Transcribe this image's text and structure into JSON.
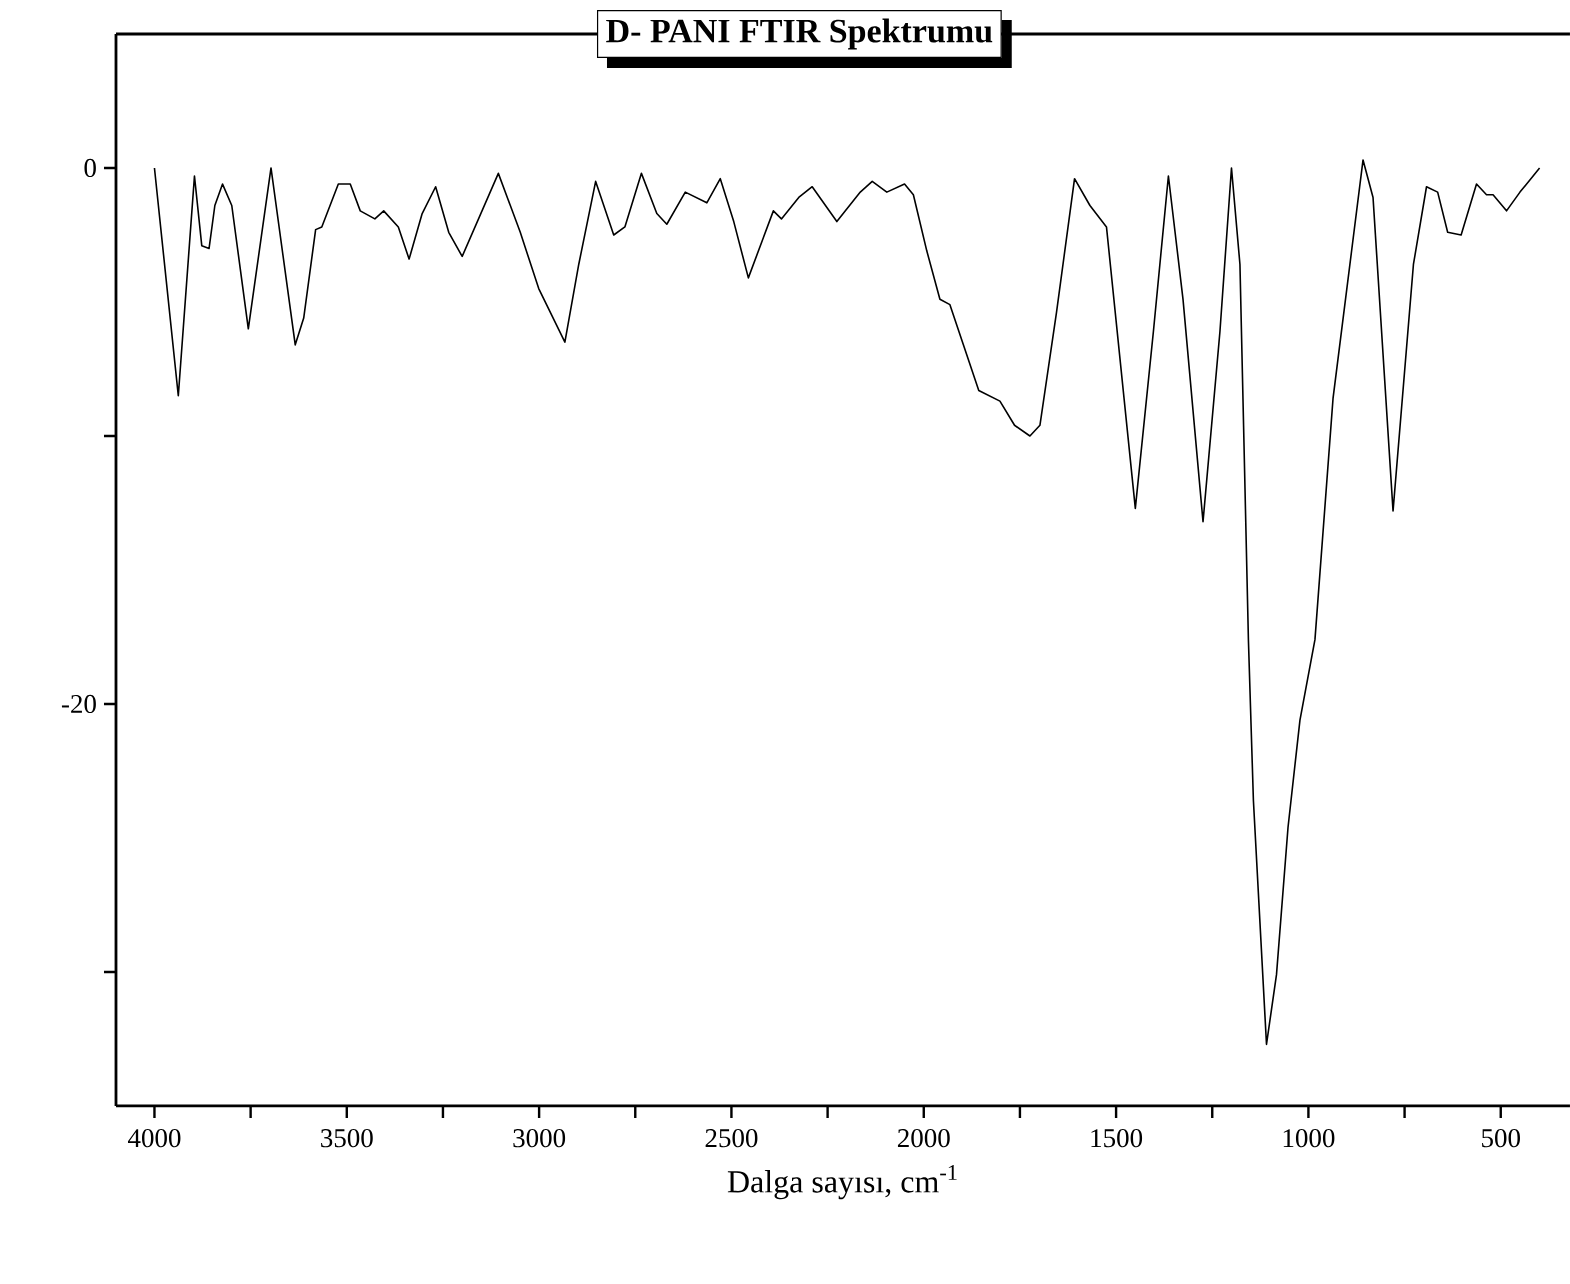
{
  "chart_data": {
    "type": "line",
    "title": "**D- PANI FTIR Spektrumu**",
    "xlabel": "Dalga sayısı, cm$^{-1}$",
    "x": [
      4000,
      3938,
      3896,
      3877,
      3858,
      3843,
      3823,
      3799,
      3756,
      3697,
      3634,
      3612,
      3581,
      3565,
      3522,
      3491,
      3465,
      3427,
      3404,
      3366,
      3338,
      3304,
      3269,
      3235,
      3200,
      3106,
      3049,
      3001,
      2933,
      2897,
      2853,
      2806,
      2777,
      2734,
      2694,
      2668,
      2620,
      2564,
      2529,
      2494,
      2456,
      2391,
      2370,
      2325,
      2290,
      2226,
      2165,
      2134,
      2096,
      2050,
      2027,
      1992,
      1958,
      1932,
      1897,
      1857,
      1802,
      1764,
      1724,
      1698,
      1655,
      1608,
      1568,
      1525,
      1450,
      1403,
      1364,
      1326,
      1274,
      1230,
      1200,
      1178,
      1156,
      1143,
      1109,
      1083,
      1053,
      1022,
      983,
      936,
      858,
      832,
      780,
      727,
      693,
      664,
      638,
      603,
      563,
      537,
      520,
      485,
      450,
      399
    ],
    "series": [
      {
        "color": "#000000",
        "values": [
          0,
          -8.5,
          -0.3,
          -2.9,
          -3.0,
          -1.4,
          -0.6,
          -1.4,
          -6.0,
          0,
          -6.6,
          -5.6,
          -2.3,
          -2.2,
          -0.6,
          -0.6,
          -1.6,
          -1.9,
          -1.6,
          -2.2,
          -3.4,
          -1.7,
          -0.7,
          -2.4,
          -3.3,
          -0.2,
          -2.4,
          -4.5,
          -6.5,
          -3.6,
          -0.5,
          -2.5,
          -2.2,
          -0.2,
          -1.7,
          -2.1,
          -0.9,
          -1.3,
          -0.4,
          -2.0,
          -4.1,
          -1.6,
          -1.9,
          -1.1,
          -0.7,
          -2.0,
          -0.9,
          -0.5,
          -0.9,
          -0.6,
          -1.0,
          -3.1,
          -4.9,
          -5.1,
          -6.6,
          -8.3,
          -8.7,
          -9.6,
          -10.0,
          -9.6,
          -5.4,
          -0.4,
          -1.4,
          -2.2,
          -12.7,
          -6.1,
          -0.3,
          -4.9,
          -13.2,
          -6.1,
          0,
          -3.6,
          -17.6,
          -23.6,
          -32.7,
          -30.1,
          -24.6,
          -20.6,
          -17.6,
          -8.6,
          0.3,
          -1.1,
          -12.8,
          -3.6,
          -0.7,
          -0.9,
          -2.4,
          -2.5,
          -0.6,
          -1.0,
          -1.0,
          -1.6,
          -0.9,
          0
        ]
      }
    ],
    "xlim": [
      4100,
      320
    ],
    "ylim": [
      -35,
      5
    ],
    "xticks": [
      4000,
      {
        "value": 3750,
        "label": null
      },
      3500,
      {
        "value": 3250,
        "label": null
      },
      3000,
      {
        "value": 2750,
        "label": null
      },
      2500,
      {
        "value": 2250,
        "label": null
      },
      2000,
      {
        "value": 1750,
        "label": null
      },
      1500,
      {
        "value": 1250,
        "label": null
      },
      1000,
      {
        "value": 750,
        "label": null
      },
      500
    ],
    "yticks": [
      0,
      {
        "value": -10,
        "label": null
      },
      -20,
      {
        "value": -30,
        "label": null
      }
    ],
    "grid": false,
    "marker": "none",
    "line_style": "solid"
  }
}
